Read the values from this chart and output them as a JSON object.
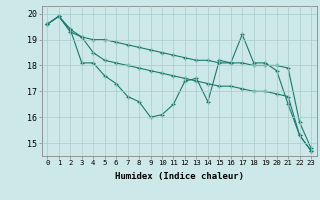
{
  "xlabel": "Humidex (Indice chaleur)",
  "background_color": "#cce8e8",
  "grid_color": "#aacccc",
  "line_color": "#1a7a6e",
  "xlim": [
    -0.5,
    23.5
  ],
  "ylim": [
    14.5,
    20.3
  ],
  "xticks": [
    0,
    1,
    2,
    3,
    4,
    5,
    6,
    7,
    8,
    9,
    10,
    11,
    12,
    13,
    14,
    15,
    16,
    17,
    18,
    19,
    20,
    21,
    22,
    23
  ],
  "yticks": [
    15,
    16,
    17,
    18,
    19,
    20
  ],
  "series": [
    [
      19.6,
      19.9,
      19.4,
      18.1,
      18.1,
      17.6,
      17.3,
      16.8,
      16.6,
      16.0,
      16.1,
      16.5,
      17.4,
      17.5,
      16.6,
      18.2,
      18.1,
      19.2,
      18.1,
      18.1,
      17.8,
      16.5,
      15.3,
      14.7
    ],
    [
      19.6,
      19.9,
      19.4,
      19.1,
      19.0,
      19.0,
      18.9,
      18.8,
      18.7,
      18.6,
      18.5,
      18.4,
      18.3,
      18.2,
      18.2,
      18.1,
      18.1,
      18.1,
      18.0,
      18.0,
      18.0,
      17.9,
      15.8,
      14.8
    ],
    [
      19.6,
      19.9,
      19.3,
      19.1,
      18.5,
      18.2,
      18.1,
      18.0,
      17.9,
      17.8,
      17.7,
      17.6,
      17.5,
      17.4,
      17.3,
      17.2,
      17.2,
      17.1,
      17.0,
      17.0,
      16.9,
      16.8,
      15.3,
      14.7
    ]
  ]
}
